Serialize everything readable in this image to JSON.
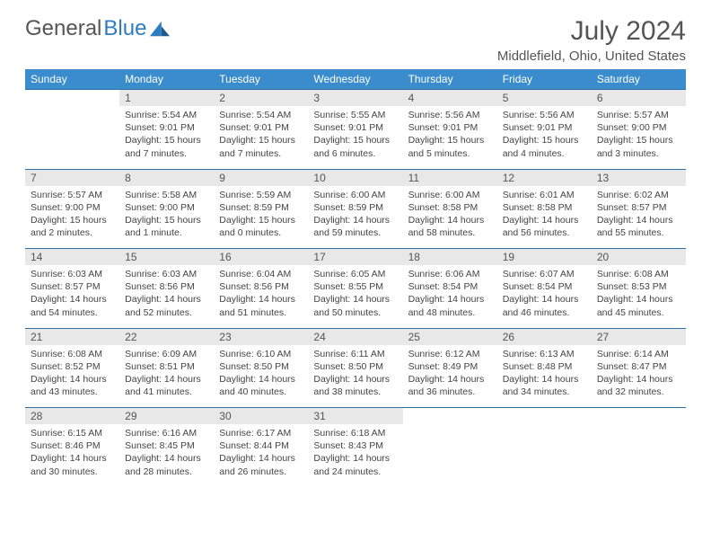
{
  "logo": {
    "part1": "General",
    "part2": "Blue"
  },
  "title": "July 2024",
  "location": "Middlefield, Ohio, United States",
  "colors": {
    "header_bg": "#3a8ccc",
    "header_text": "#ffffff",
    "daynum_bg": "#e8e8e8",
    "row_border": "#2f6fa5",
    "text": "#444",
    "logo_blue": "#2f7dc0"
  },
  "weekdays": [
    "Sunday",
    "Monday",
    "Tuesday",
    "Wednesday",
    "Thursday",
    "Friday",
    "Saturday"
  ],
  "weeks": [
    [
      null,
      {
        "n": "1",
        "sr": "5:54 AM",
        "ss": "9:01 PM",
        "dl": "15 hours and 7 minutes."
      },
      {
        "n": "2",
        "sr": "5:54 AM",
        "ss": "9:01 PM",
        "dl": "15 hours and 7 minutes."
      },
      {
        "n": "3",
        "sr": "5:55 AM",
        "ss": "9:01 PM",
        "dl": "15 hours and 6 minutes."
      },
      {
        "n": "4",
        "sr": "5:56 AM",
        "ss": "9:01 PM",
        "dl": "15 hours and 5 minutes."
      },
      {
        "n": "5",
        "sr": "5:56 AM",
        "ss": "9:01 PM",
        "dl": "15 hours and 4 minutes."
      },
      {
        "n": "6",
        "sr": "5:57 AM",
        "ss": "9:00 PM",
        "dl": "15 hours and 3 minutes."
      }
    ],
    [
      {
        "n": "7",
        "sr": "5:57 AM",
        "ss": "9:00 PM",
        "dl": "15 hours and 2 minutes."
      },
      {
        "n": "8",
        "sr": "5:58 AM",
        "ss": "9:00 PM",
        "dl": "15 hours and 1 minute."
      },
      {
        "n": "9",
        "sr": "5:59 AM",
        "ss": "8:59 PM",
        "dl": "15 hours and 0 minutes."
      },
      {
        "n": "10",
        "sr": "6:00 AM",
        "ss": "8:59 PM",
        "dl": "14 hours and 59 minutes."
      },
      {
        "n": "11",
        "sr": "6:00 AM",
        "ss": "8:58 PM",
        "dl": "14 hours and 58 minutes."
      },
      {
        "n": "12",
        "sr": "6:01 AM",
        "ss": "8:58 PM",
        "dl": "14 hours and 56 minutes."
      },
      {
        "n": "13",
        "sr": "6:02 AM",
        "ss": "8:57 PM",
        "dl": "14 hours and 55 minutes."
      }
    ],
    [
      {
        "n": "14",
        "sr": "6:03 AM",
        "ss": "8:57 PM",
        "dl": "14 hours and 54 minutes."
      },
      {
        "n": "15",
        "sr": "6:03 AM",
        "ss": "8:56 PM",
        "dl": "14 hours and 52 minutes."
      },
      {
        "n": "16",
        "sr": "6:04 AM",
        "ss": "8:56 PM",
        "dl": "14 hours and 51 minutes."
      },
      {
        "n": "17",
        "sr": "6:05 AM",
        "ss": "8:55 PM",
        "dl": "14 hours and 50 minutes."
      },
      {
        "n": "18",
        "sr": "6:06 AM",
        "ss": "8:54 PM",
        "dl": "14 hours and 48 minutes."
      },
      {
        "n": "19",
        "sr": "6:07 AM",
        "ss": "8:54 PM",
        "dl": "14 hours and 46 minutes."
      },
      {
        "n": "20",
        "sr": "6:08 AM",
        "ss": "8:53 PM",
        "dl": "14 hours and 45 minutes."
      }
    ],
    [
      {
        "n": "21",
        "sr": "6:08 AM",
        "ss": "8:52 PM",
        "dl": "14 hours and 43 minutes."
      },
      {
        "n": "22",
        "sr": "6:09 AM",
        "ss": "8:51 PM",
        "dl": "14 hours and 41 minutes."
      },
      {
        "n": "23",
        "sr": "6:10 AM",
        "ss": "8:50 PM",
        "dl": "14 hours and 40 minutes."
      },
      {
        "n": "24",
        "sr": "6:11 AM",
        "ss": "8:50 PM",
        "dl": "14 hours and 38 minutes."
      },
      {
        "n": "25",
        "sr": "6:12 AM",
        "ss": "8:49 PM",
        "dl": "14 hours and 36 minutes."
      },
      {
        "n": "26",
        "sr": "6:13 AM",
        "ss": "8:48 PM",
        "dl": "14 hours and 34 minutes."
      },
      {
        "n": "27",
        "sr": "6:14 AM",
        "ss": "8:47 PM",
        "dl": "14 hours and 32 minutes."
      }
    ],
    [
      {
        "n": "28",
        "sr": "6:15 AM",
        "ss": "8:46 PM",
        "dl": "14 hours and 30 minutes."
      },
      {
        "n": "29",
        "sr": "6:16 AM",
        "ss": "8:45 PM",
        "dl": "14 hours and 28 minutes."
      },
      {
        "n": "30",
        "sr": "6:17 AM",
        "ss": "8:44 PM",
        "dl": "14 hours and 26 minutes."
      },
      {
        "n": "31",
        "sr": "6:18 AM",
        "ss": "8:43 PM",
        "dl": "14 hours and 24 minutes."
      },
      null,
      null,
      null
    ]
  ],
  "labels": {
    "sunrise": "Sunrise:",
    "sunset": "Sunset:",
    "daylight": "Daylight:"
  }
}
